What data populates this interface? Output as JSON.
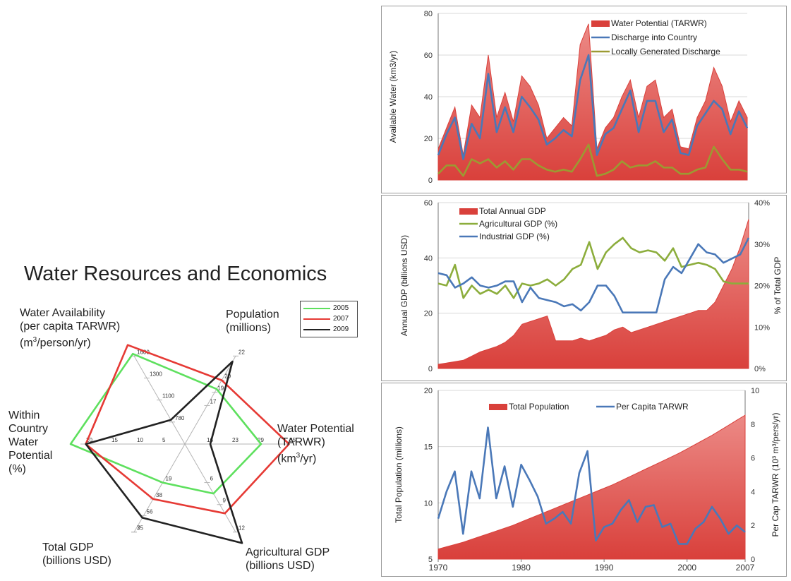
{
  "title": "Water Resources and Economics",
  "colors": {
    "red_area": "#d9403b",
    "blue_line": "#4a78b8",
    "green_line": "#8cad3c",
    "olive_line": "#9c9a32",
    "radar_2005": "#5ee05e",
    "radar_2007": "#e63a35",
    "radar_2009": "#222222"
  },
  "chart_data": [
    {
      "type": "area",
      "ylabel": "Available Water (km3/yr)",
      "ylim": [
        0,
        80
      ],
      "yticks": [
        "0",
        "20",
        "40",
        "60",
        "80"
      ],
      "legend_position": "top-right",
      "x": [
        1970,
        1971,
        1972,
        1973,
        1974,
        1975,
        1976,
        1977,
        1978,
        1979,
        1980,
        1981,
        1982,
        1983,
        1984,
        1985,
        1986,
        1987,
        1988,
        1989,
        1990,
        1991,
        1992,
        1993,
        1994,
        1995,
        1996,
        1997,
        1998,
        1999,
        2000,
        2001,
        2002,
        2003,
        2004,
        2005,
        2006,
        2007
      ],
      "series": [
        {
          "name": "Water Potential (TARWR)",
          "kind": "area",
          "values": [
            15,
            25,
            35,
            12,
            36,
            30,
            60,
            30,
            42,
            28,
            50,
            45,
            36,
            20,
            25,
            30,
            26,
            65,
            75,
            15,
            25,
            30,
            40,
            48,
            30,
            45,
            48,
            30,
            34,
            16,
            15,
            30,
            38,
            54,
            45,
            28,
            38,
            30
          ]
        },
        {
          "name": "Discharge into Country",
          "kind": "line",
          "values": [
            12,
            22,
            30,
            10,
            27,
            20,
            51,
            23,
            35,
            23,
            40,
            35,
            29,
            17,
            20,
            24,
            21,
            48,
            60,
            12,
            22,
            25,
            34,
            43,
            23,
            38,
            38,
            23,
            29,
            13,
            12,
            26,
            32,
            38,
            34,
            22,
            33,
            25
          ]
        },
        {
          "name": "Locally Generated Discharge",
          "kind": "line",
          "values": [
            3,
            7,
            7,
            2,
            10,
            8,
            10,
            6,
            9,
            5,
            10,
            10,
            7,
            5,
            4,
            5,
            4,
            10,
            17,
            2,
            3,
            5,
            9,
            6,
            7,
            7,
            9,
            6,
            6,
            3,
            3,
            5,
            6,
            16,
            10,
            5,
            5,
            4
          ]
        }
      ]
    },
    {
      "type": "area",
      "ylabel": "Annual GDP (billions USD)",
      "y2label": "% of Total GDP",
      "ylim": [
        0,
        60
      ],
      "y2lim": [
        0,
        40
      ],
      "yticks": [
        "0",
        "20",
        "40",
        "60"
      ],
      "y2ticks": [
        "0%",
        "10%",
        "20%",
        "30%",
        "40%"
      ],
      "legend_position": "top-left",
      "x": [
        1970,
        1971,
        1972,
        1973,
        1974,
        1975,
        1976,
        1977,
        1978,
        1979,
        1980,
        1981,
        1982,
        1983,
        1984,
        1985,
        1986,
        1987,
        1988,
        1989,
        1990,
        1991,
        1992,
        1993,
        1994,
        1995,
        1996,
        1997,
        1998,
        1999,
        2000,
        2001,
        2002,
        2003,
        2004,
        2005,
        2006,
        2007
      ],
      "series": [
        {
          "name": "Total Annual GDP",
          "kind": "area",
          "axis": "left",
          "values": [
            1.5,
            2,
            2.5,
            3,
            4.5,
            6,
            7,
            8,
            9.5,
            12,
            16,
            17,
            18,
            19,
            10,
            10,
            10,
            11,
            10,
            11,
            12,
            14,
            15,
            13,
            14,
            15,
            16,
            17,
            18,
            19,
            20,
            21,
            21,
            24,
            30,
            36,
            44,
            54
          ]
        },
        {
          "name": "Agricultural GDP (%)",
          "kind": "line",
          "axis": "right",
          "values": [
            20.5,
            20,
            25,
            17,
            20,
            18,
            19,
            18,
            20,
            17,
            20.5,
            20,
            20.5,
            21.5,
            20,
            21.5,
            24,
            25,
            30.5,
            24,
            28,
            30,
            31.5,
            29,
            28,
            28.5,
            28,
            26,
            29,
            24.5,
            25,
            25.5,
            25,
            24,
            21,
            20.5,
            20.5,
            20.5
          ]
        },
        {
          "name": "Industrial GDP (%)",
          "kind": "line",
          "axis": "right",
          "values": [
            23,
            22.5,
            19.5,
            20.5,
            22,
            20,
            19.5,
            20,
            21,
            21,
            16,
            19.5,
            17,
            16.5,
            16,
            15,
            15.5,
            14,
            16,
            20,
            20,
            17.5,
            13.5,
            13.5,
            13.5,
            13.5,
            13.5,
            21.5,
            24.5,
            23,
            26.5,
            30,
            28,
            27.5,
            25.5,
            26.5,
            27.5,
            31.5
          ]
        }
      ]
    },
    {
      "type": "area",
      "ylabel": "Total Population (millions)",
      "y2label": "Per Cap TARWR (10³ m³/pers/yr)",
      "ylim": [
        5,
        20
      ],
      "y2lim": [
        0,
        10
      ],
      "yticks": [
        "5",
        "10",
        "15",
        "20"
      ],
      "y2ticks": [
        "0",
        "2",
        "4",
        "6",
        "8",
        "10"
      ],
      "xticks": [
        "1970",
        "1980",
        "1990",
        "2000",
        "2007"
      ],
      "legend_position": "top",
      "x": [
        1970,
        1971,
        1972,
        1973,
        1974,
        1975,
        1976,
        1977,
        1978,
        1979,
        1980,
        1981,
        1982,
        1983,
        1984,
        1985,
        1986,
        1987,
        1988,
        1989,
        1990,
        1991,
        1992,
        1993,
        1994,
        1995,
        1996,
        1997,
        1998,
        1999,
        2000,
        2001,
        2002,
        2003,
        2004,
        2005,
        2006,
        2007
      ],
      "series": [
        {
          "name": "Total Population",
          "kind": "area",
          "axis": "left",
          "values": [
            5.9,
            6.1,
            6.3,
            6.5,
            6.75,
            7.0,
            7.25,
            7.5,
            7.75,
            8.0,
            8.3,
            8.6,
            8.9,
            9.2,
            9.5,
            9.8,
            10.1,
            10.4,
            10.7,
            11.0,
            11.3,
            11.6,
            11.95,
            12.3,
            12.65,
            13.0,
            13.35,
            13.7,
            14.05,
            14.4,
            14.8,
            15.2,
            15.6,
            16.0,
            16.45,
            16.9,
            17.35,
            17.8
          ]
        },
        {
          "name": "Per Capita TARWR",
          "kind": "line",
          "axis": "right",
          "values": [
            2.4,
            4.0,
            5.2,
            1.5,
            5.2,
            3.6,
            7.8,
            3.6,
            5.5,
            3.1,
            5.6,
            4.7,
            3.7,
            2.1,
            2.4,
            2.8,
            2.1,
            5.1,
            6.4,
            1.1,
            1.9,
            2.1,
            2.9,
            3.5,
            2.2,
            3.1,
            3.2,
            1.9,
            2.1,
            0.9,
            0.9,
            1.8,
            2.2,
            3.1,
            2.4,
            1.5,
            2.0,
            1.6
          ]
        }
      ]
    },
    {
      "type": "radar",
      "legend_position": "top-right",
      "axes": [
        {
          "label": "Population\n(millions)",
          "ticks": [
            "17",
            "19",
            "20",
            "22"
          ]
        },
        {
          "label": "Water Potential\n(TARWR)\n(km³/yr)",
          "ticks": [
            "16",
            "23",
            "29",
            "35"
          ]
        },
        {
          "label": "Agricultural GDP\n(billions USD)",
          "ticks": [
            "6",
            "9",
            "12"
          ]
        },
        {
          "label": "Total GDP\n(billions USD)",
          "ticks": [
            "3",
            "19",
            "38",
            "56",
            "75"
          ]
        },
        {
          "label": "Within\nCountry\nWater\nPotential\n(%)",
          "ticks": [
            "5",
            "10",
            "15",
            "20"
          ]
        },
        {
          "label": "Water Availability\n(per capita TARWR)\n(m³/person/yr)",
          "ticks": [
            "780",
            "1100",
            "1300",
            "1600"
          ]
        }
      ],
      "series": [
        {
          "name": "2005",
          "values": [
            0.5,
            0.6,
            0.45,
            0.35,
            0.9,
            0.82
          ]
        },
        {
          "name": "2007",
          "values": [
            0.58,
            0.82,
            0.63,
            0.5,
            0.78,
            0.9
          ]
        },
        {
          "name": "2009",
          "values": [
            0.75,
            0.2,
            0.9,
            0.67,
            0.78,
            0.22
          ]
        }
      ]
    }
  ]
}
